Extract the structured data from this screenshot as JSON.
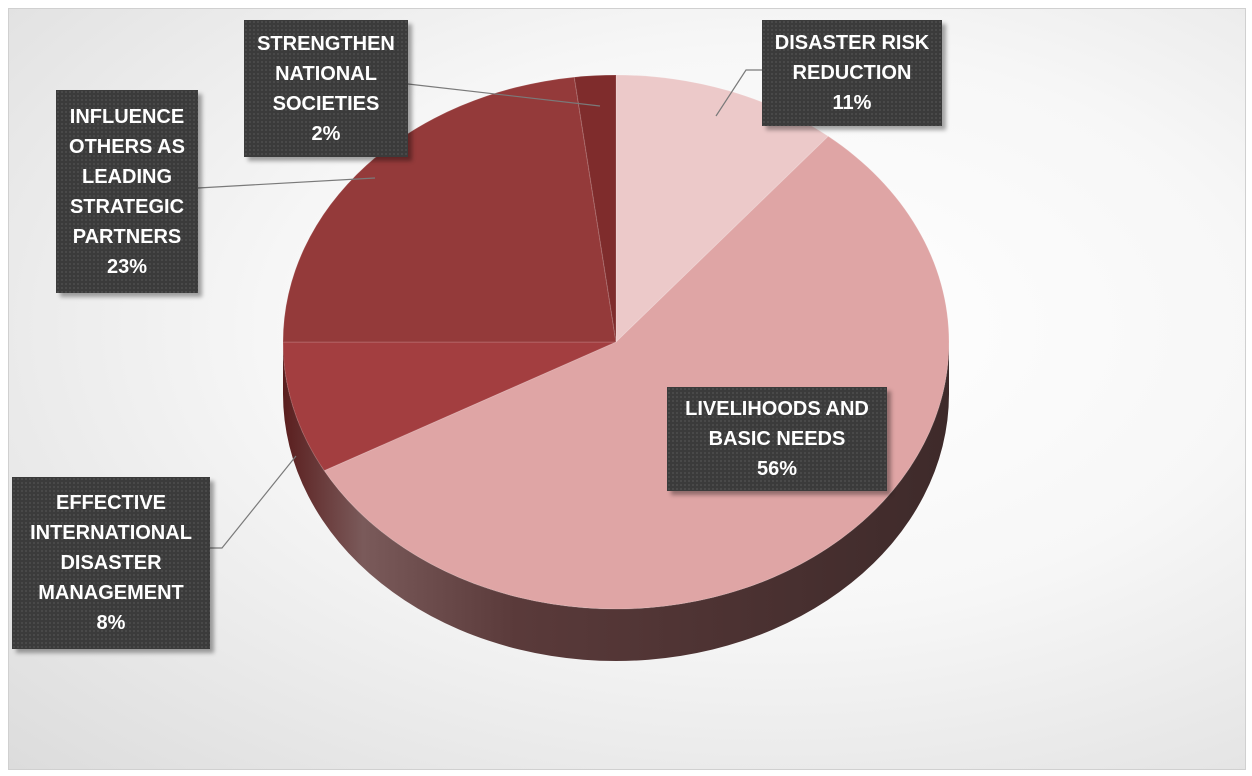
{
  "chart_data": {
    "type": "pie",
    "title": "",
    "start_angle_deg": 0,
    "direction": "clockwise",
    "slices": [
      {
        "label_lines": [
          "DISASTER RISK",
          "REDUCTION"
        ],
        "value": 11,
        "value_label": "11%",
        "color": "#ecc9c9"
      },
      {
        "label_lines": [
          "LIVELIHOODS AND",
          "BASIC NEEDS"
        ],
        "value": 56,
        "value_label": "56%",
        "color": "#dfa5a5"
      },
      {
        "label_lines": [
          "EFFECTIVE",
          "INTERNATIONAL",
          "DISASTER",
          "MANAGEMENT"
        ],
        "value": 8,
        "value_label": "8%",
        "color": "#a33e40"
      },
      {
        "label_lines": [
          "INFLUENCE",
          "OTHERS AS",
          "LEADING",
          "STRATEGIC",
          "PARTNERS"
        ],
        "value": 23,
        "value_label": "23%",
        "color": "#943a3a"
      },
      {
        "label_lines": [
          "STRENGTHEN",
          "NATIONAL",
          "SOCIETIES"
        ],
        "value": 2,
        "value_label": "2%",
        "color": "#7f2c2c"
      }
    ]
  }
}
